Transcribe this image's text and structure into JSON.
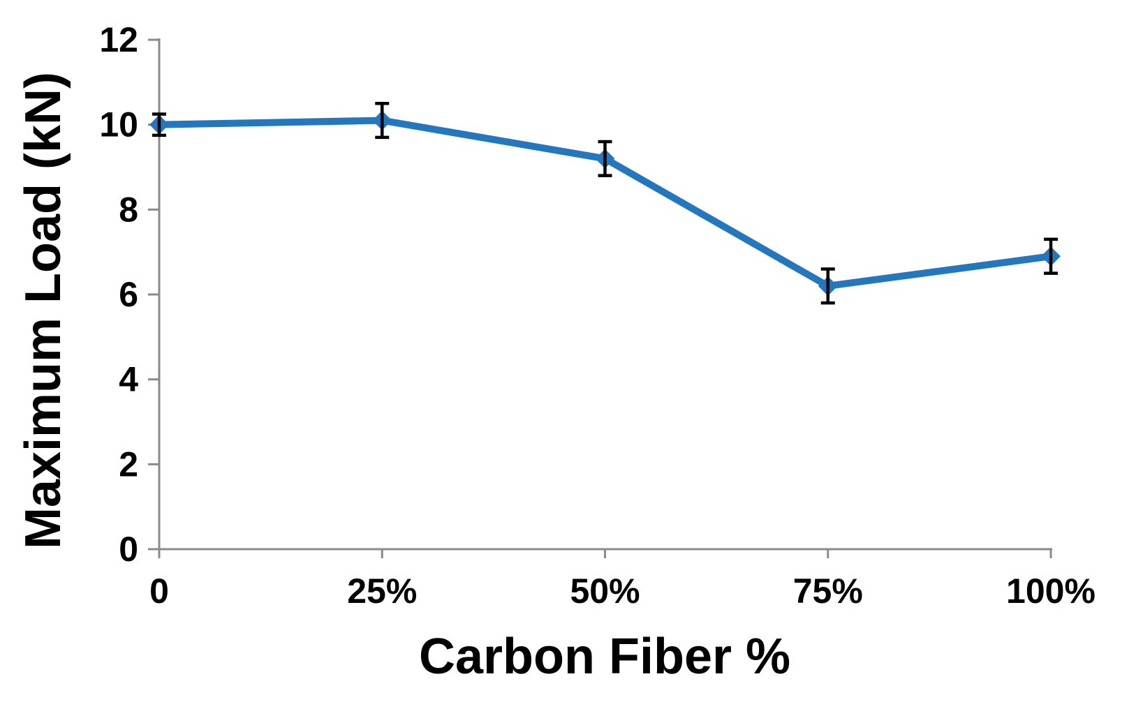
{
  "chart_data": {
    "type": "line",
    "title": "",
    "xlabel": "Carbon Fiber %",
    "ylabel": "Maximum Load (kN)",
    "categories": [
      "0",
      "25%",
      "50%",
      "75%",
      "100%"
    ],
    "series": [
      {
        "name": "Maximum Load (kN)",
        "values": [
          10.0,
          10.1,
          9.2,
          6.2,
          6.9
        ],
        "error_bars": [
          0.25,
          0.4,
          0.4,
          0.4,
          0.4
        ]
      }
    ],
    "ylim": [
      0,
      12
    ],
    "yticks": [
      0,
      2,
      4,
      6,
      8,
      10,
      12
    ],
    "grid": false,
    "legend": "none",
    "marker": "diamond",
    "colors": {
      "line": "#2577BD",
      "marker": "#2577BD",
      "error_bar": "#000000",
      "axis": "#8A8A8A",
      "text": "#000000",
      "background": "#FFFFFF"
    }
  }
}
